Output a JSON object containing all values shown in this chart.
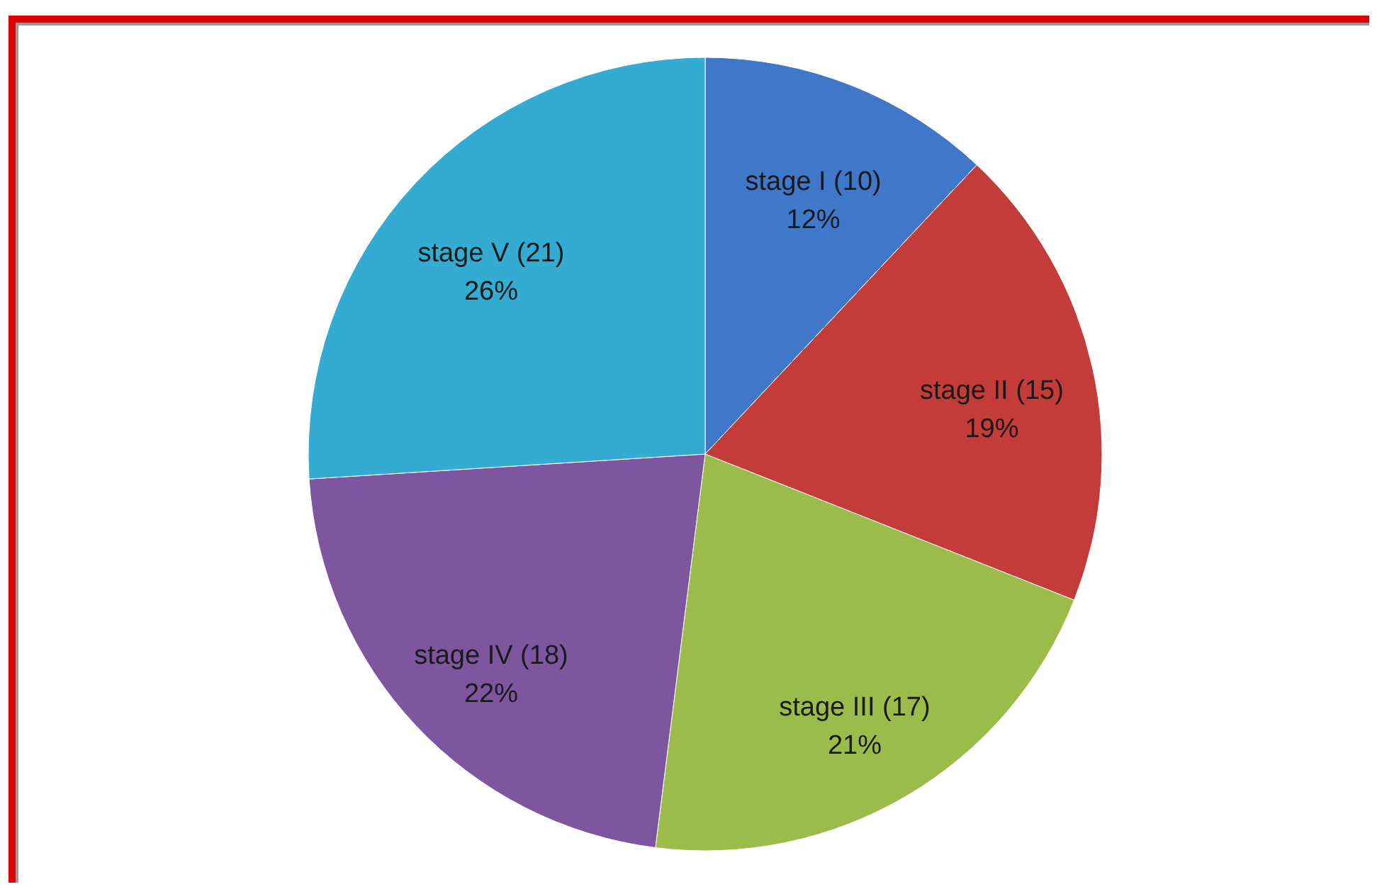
{
  "chart_data": {
    "type": "pie",
    "categories": [
      "stage I (10)",
      "stage II  (15)",
      "stage III (17)",
      "stage IV (18)",
      "stage V (21)"
    ],
    "values": [
      12,
      19,
      21,
      22,
      26
    ],
    "value_labels": [
      "12%",
      "19%",
      "21%",
      "22%",
      "26%"
    ],
    "colors": [
      "#3f78c8",
      "#c43c3a",
      "#9bbb4a",
      "#7e56a0",
      "#34abd0"
    ]
  }
}
